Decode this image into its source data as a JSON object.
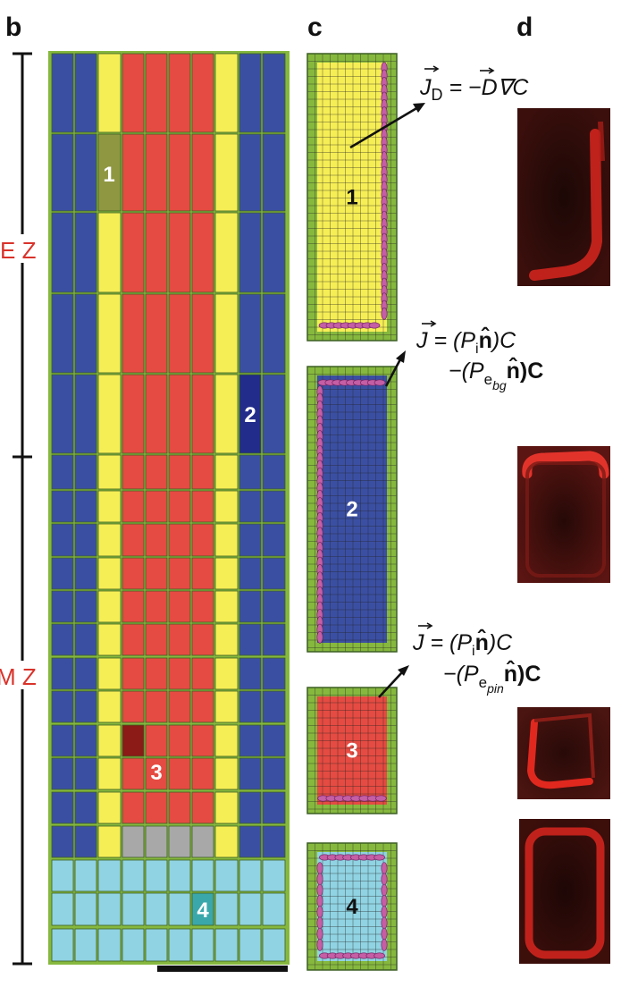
{
  "panels": {
    "b": "b",
    "c": "c",
    "d": "d"
  },
  "zones": {
    "ez": "E Z",
    "mz": "M Z"
  },
  "cell_numbers": {
    "one": "1",
    "two": "2",
    "three": "3",
    "four": "4"
  },
  "equations": {
    "diffusion": {
      "lhs": "J",
      "sub": "D",
      "rhs": " = −D∇C"
    },
    "flux_bg": {
      "line1": "J = (P",
      "i": "i",
      "n": "n̂",
      "c1": ")C",
      "line2": "−(P",
      "sub_e": "e",
      "sub_bg": "bg",
      "c2": "n̂)C"
    },
    "flux_pin": {
      "line1": "J = (P",
      "i": "i",
      "n": "n̂",
      "c1": ")C",
      "line2": "−(P",
      "sub_e": "e",
      "sub_pin": "pin",
      "c2": "n̂)C"
    }
  },
  "colors": {
    "background": "#ffffff",
    "cell_wall": "#86b83e",
    "stele_blue": "#3b4fa2",
    "yellow": "#f6ee55",
    "red": "#e54b42",
    "cyan": "#90d3e2",
    "grey": "#a8a8a8",
    "highlight_olive": "#8f9741",
    "highlight_navy": "#222c8a",
    "highlight_darkred": "#8c1a16",
    "highlight_teal": "#3aa7ab",
    "pin_pink": "#c55ea4",
    "micro_dark": "#1a0807",
    "micro_red": "#e12a22"
  }
}
